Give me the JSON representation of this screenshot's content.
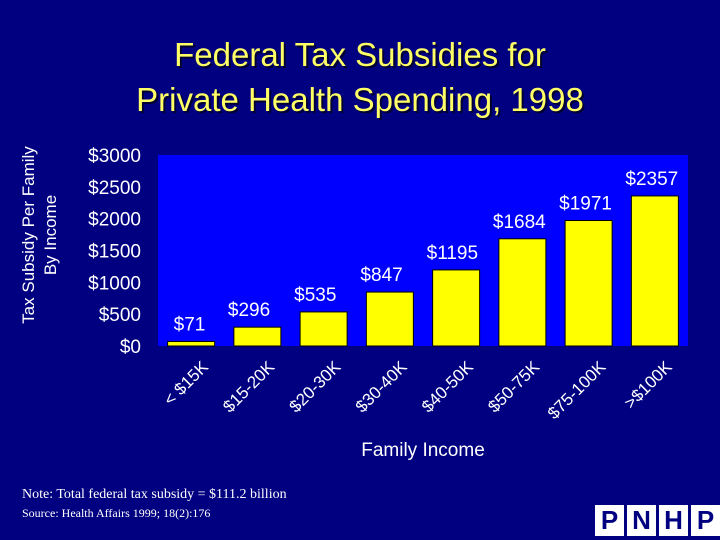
{
  "title": [
    "Federal Tax Subsidies for",
    "Private Health Spending, 1998"
  ],
  "ylabel": [
    "Tax Subsidy Per Family",
    "By Income"
  ],
  "xlabel": "Family Income",
  "note": "Note: Total federal tax subsidy = $111.2 billion",
  "source": "Source: Health Affairs 1999; 18(2):176",
  "logo": [
    "P",
    "N",
    "H",
    "P"
  ],
  "colors": {
    "background": "#000080",
    "plot_area": "#0000ff",
    "bars": "#ffff00",
    "title": "#ffff66",
    "text": "#ffffff"
  },
  "chart_data": {
    "type": "bar",
    "categories": [
      "< $15K",
      "$15-20K",
      "$20-30K",
      "$30-40K",
      "$40-50K",
      "$50-75K",
      "$75-100K",
      ">$100K"
    ],
    "values": [
      71,
      296,
      535,
      847,
      1195,
      1684,
      1971,
      2357
    ],
    "data_labels": [
      "$71",
      "$296",
      "$535",
      "$847",
      "$1195",
      "$1684",
      "$1971",
      "$2357"
    ],
    "yticks": [
      0,
      500,
      1000,
      1500,
      2000,
      2500,
      3000
    ],
    "ytick_labels": [
      "$0",
      "$500",
      "$1000",
      "$1500",
      "$2000",
      "$2500",
      "$3000"
    ],
    "ylim": [
      0,
      3000
    ],
    "grid": false,
    "legend": "none"
  }
}
